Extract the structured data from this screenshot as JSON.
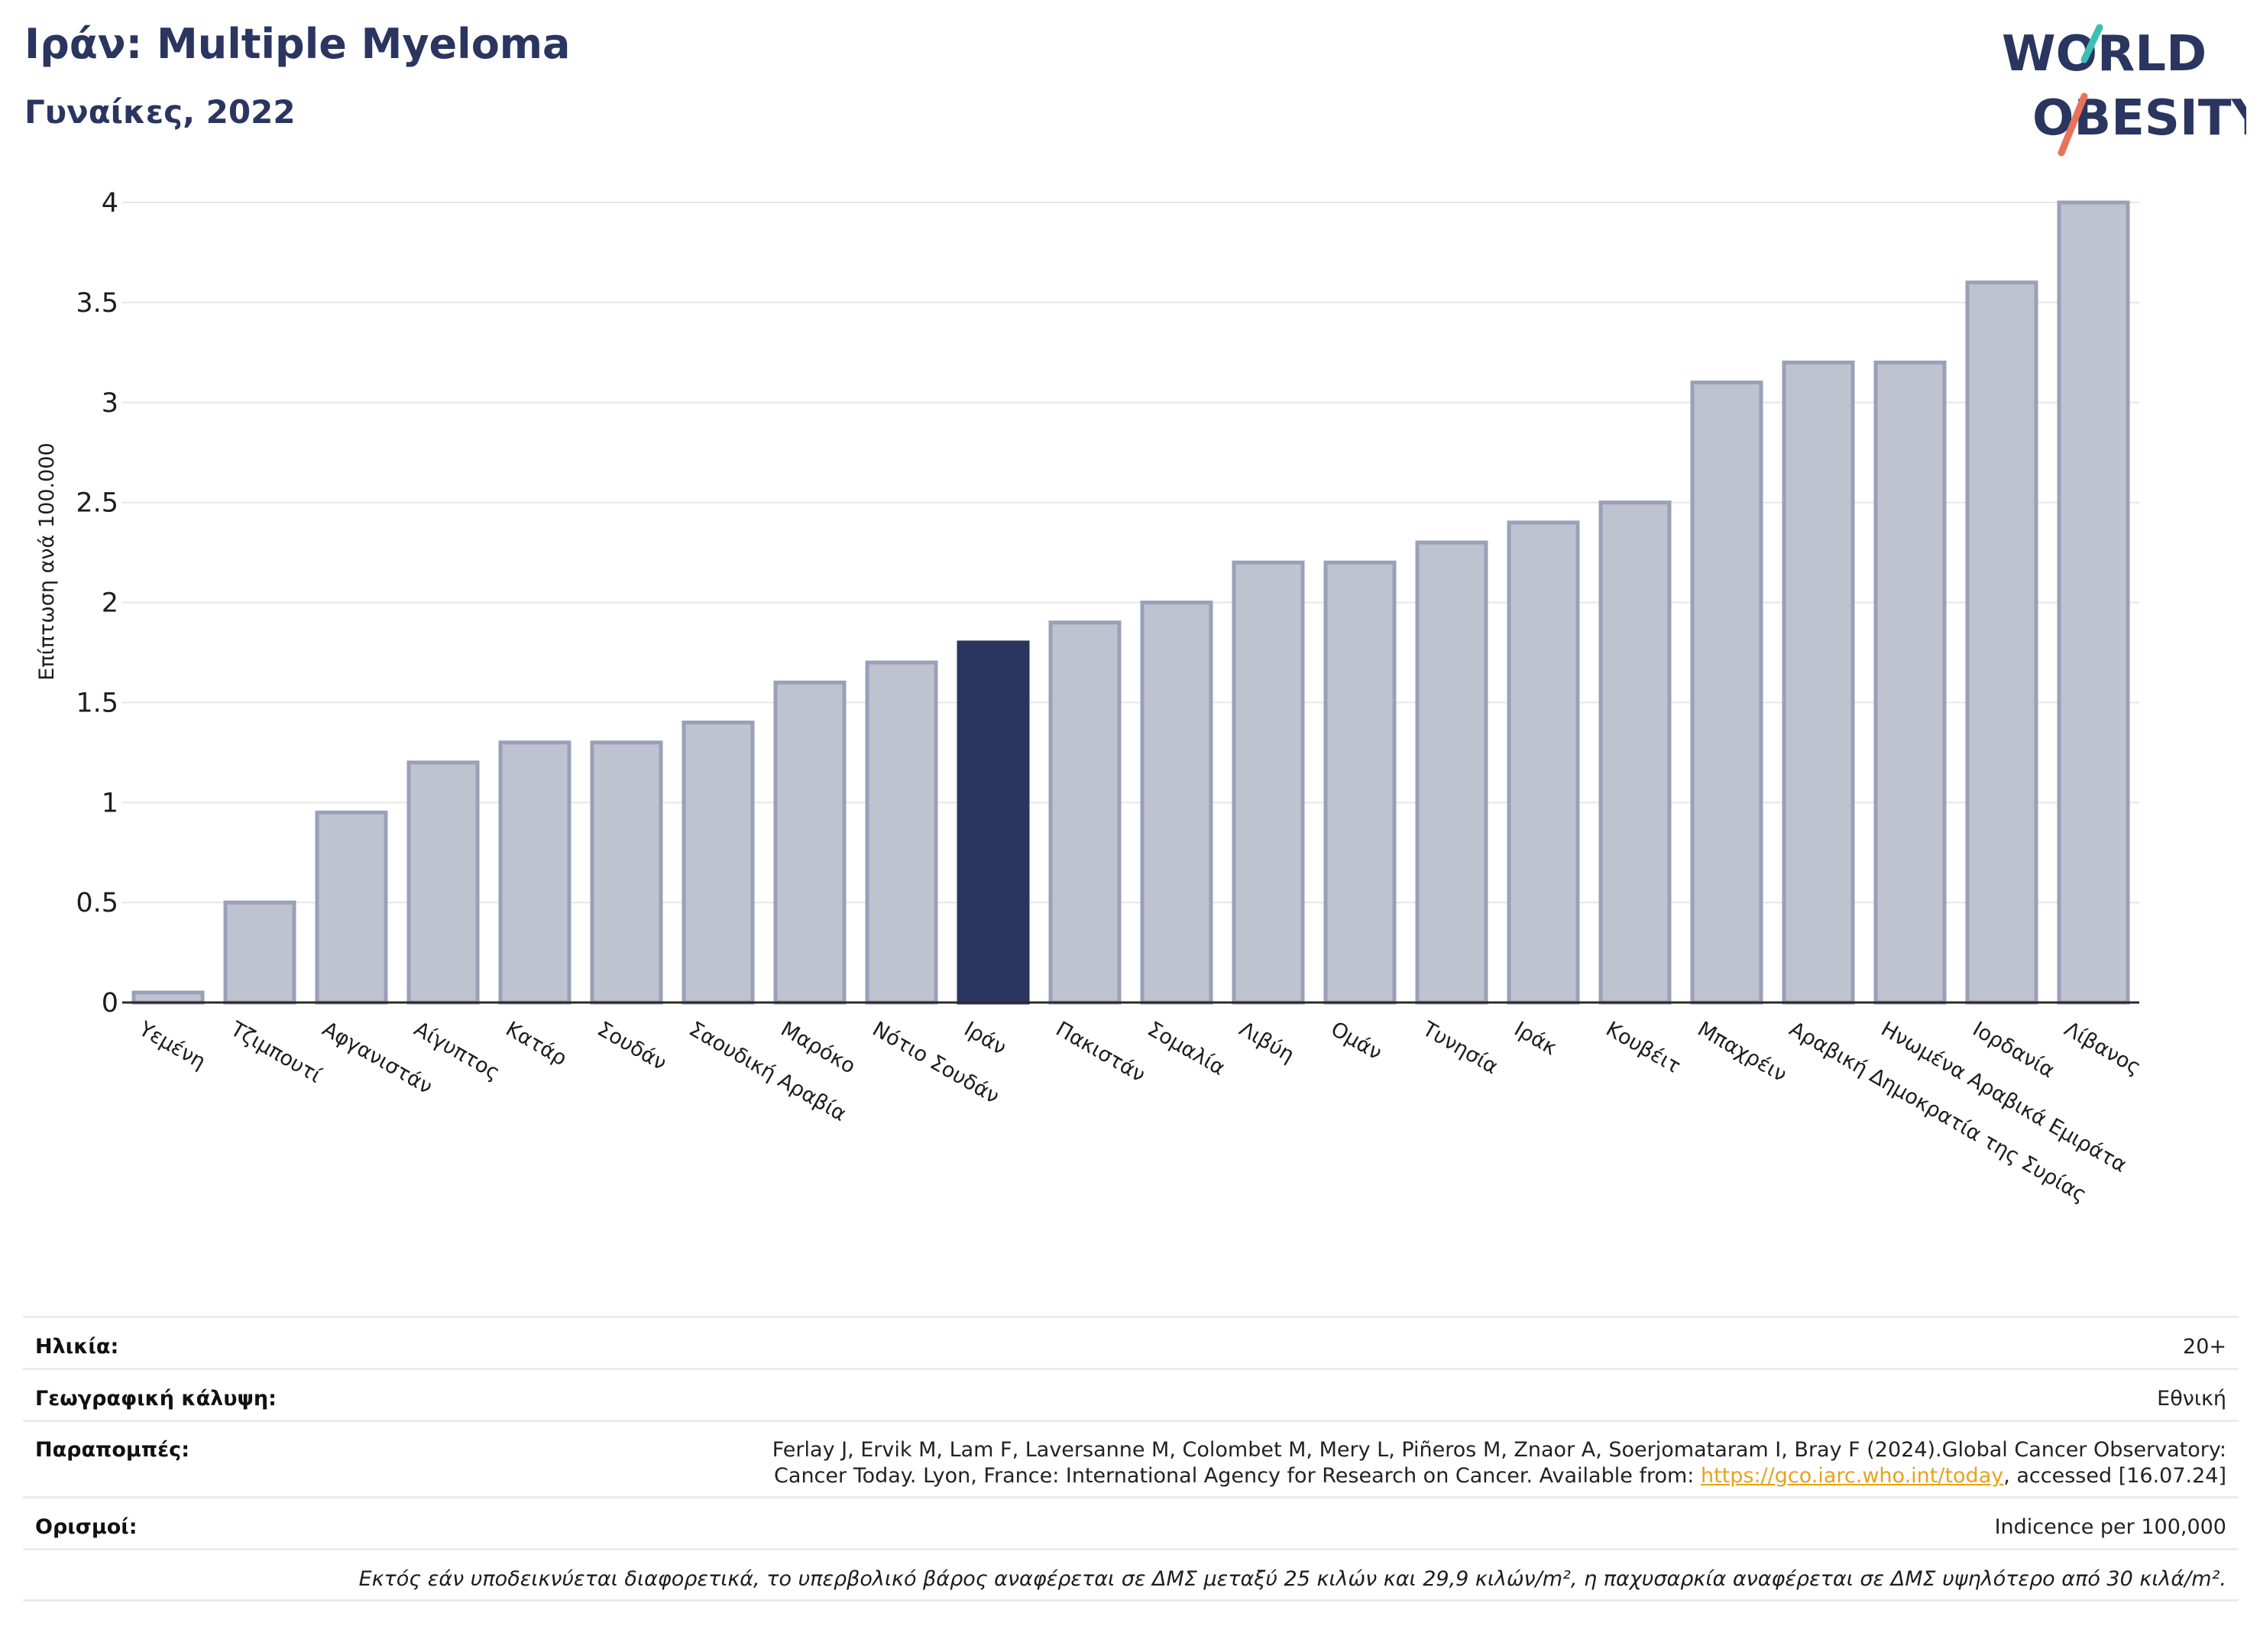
{
  "header": {
    "title": "Ιράν: Multiple Myeloma",
    "subtitle": "Γυναίκες, 2022"
  },
  "logo": {
    "line1": "WORLD",
    "line2": "OBESITY",
    "colors": {
      "navy": "#2a3560",
      "teal": "#3cbfb4",
      "coral": "#e8735a"
    }
  },
  "chart_data": {
    "type": "bar",
    "title": "Ιράν: Multiple Myeloma",
    "subtitle": "Γυναίκες, 2022",
    "ylabel": "Επίπτωση ανά 100.000",
    "xlabel": "",
    "ylim": [
      0,
      4
    ],
    "yticks": [
      0,
      0.5,
      1,
      1.5,
      2,
      2.5,
      3,
      3.5,
      4
    ],
    "ytick_labels": [
      "0",
      "0.5",
      "1",
      "1.5",
      "2",
      "2.5",
      "3",
      "3.5",
      "4"
    ],
    "grid": true,
    "highlight": "Ιράν",
    "colors": {
      "bar": "#bfc2cf",
      "bar_edge": "#9aa0b8",
      "highlight": "#2a3560",
      "grid": "#e6e6e6"
    },
    "categories": [
      "Υεμένη",
      "Τζιμπουτί",
      "Αφγανιστάν",
      "Αίγυπτος",
      "Κατάρ",
      "Σουδάν",
      "Σαουδική Αραβία",
      "Μαρόκο",
      "Νότιο Σουδάν",
      "Ιράν",
      "Πακιστάν",
      "Σομαλία",
      "Λιβύη",
      "Ομάν",
      "Τυνησία",
      "Ιράκ",
      "Κουβέιτ",
      "Μπαχρέιν",
      "Αραβική Δημοκρατία της Συρίας",
      "Ηνωμένα Αραβικά Εμιράτα",
      "Ιορδανία",
      "Λίβανος"
    ],
    "values": [
      0.05,
      0.5,
      0.95,
      1.2,
      1.3,
      1.3,
      1.4,
      1.6,
      1.7,
      1.8,
      1.9,
      2.0,
      2.2,
      2.2,
      2.3,
      2.4,
      2.5,
      3.1,
      3.2,
      3.2,
      3.6,
      4.0
    ]
  },
  "meta": {
    "age_label": "Ηλικία:",
    "age_value": "20+",
    "coverage_label": "Γεωγραφική κάλυψη:",
    "coverage_value": "Εθνική",
    "refs_label": "Παραπομπές:",
    "refs_line1": "Ferlay J, Ervik M, Lam F, Laversanne M, Colombet M, Mery L, Piñeros M, Znaor A, Soerjomataram I, Bray F (2024).Global Cancer Observatory:",
    "refs_line2_pre": "Cancer Today. Lyon, France: International Agency for Research on Cancer. Available from: ",
    "refs_link": "https://gco.iarc.who.int/today",
    "refs_line2_post": ", accessed [16.07.24]",
    "defs_label": "Ορισμοί:",
    "defs_value": "Indicence per 100,000",
    "footnote": "Εκτός εάν υποδεικνύεται διαφορετικά, το υπερβολικό βάρος αναφέρεται σε ΔΜΣ μεταξύ 25 κιλών και 29,9 κιλών/m², η παχυσαρκία αναφέρεται σε ΔΜΣ υψηλότερο από 30 κιλά/m²."
  }
}
